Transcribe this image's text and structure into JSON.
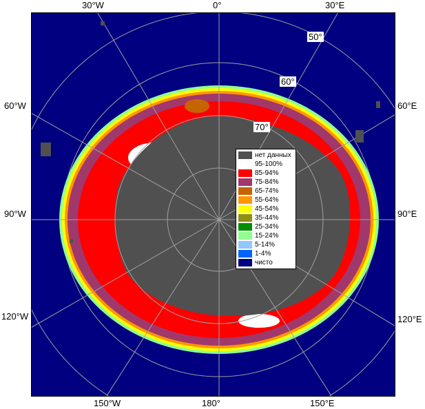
{
  "top_labels": [
    "30°W",
    "0°",
    "30°E"
  ],
  "left_labels": [
    "60°W",
    "90°W",
    "120°W"
  ],
  "right_labels": [
    "60°E",
    "90°E",
    "120°E"
  ],
  "bottom_labels": [
    "150°W",
    "180°",
    "150°E"
  ],
  "lat_labels": [
    "50°",
    "60°",
    "70°"
  ],
  "legend": [
    {
      "label": "нет данных",
      "color": "#505050"
    },
    {
      "label": "95-100%",
      "color": "#ffffff"
    },
    {
      "label": "85-94%",
      "color": "#ff0000"
    },
    {
      "label": "75-84%",
      "color": "#a0386c"
    },
    {
      "label": "65-74%",
      "color": "#c86400"
    },
    {
      "label": "55-64%",
      "color": "#ff9600"
    },
    {
      "label": "45-54%",
      "color": "#ffff00"
    },
    {
      "label": "35-44%",
      "color": "#909010"
    },
    {
      "label": "25-34%",
      "color": "#009000"
    },
    {
      "label": "15-24%",
      "color": "#90ff90"
    },
    {
      "label": "5-14%",
      "color": "#90c8ff"
    },
    {
      "label": "1-4%",
      "color": "#0064ff"
    },
    {
      "label": "чисто",
      "color": "#000080"
    }
  ],
  "colors": {
    "ocean": "#000080",
    "land": "#505050",
    "grid": "#a0a0a0"
  }
}
